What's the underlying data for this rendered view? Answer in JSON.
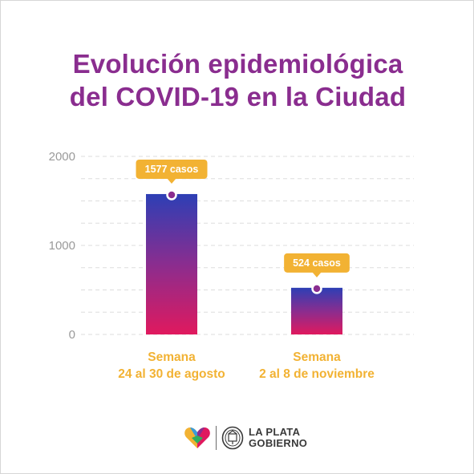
{
  "title_lines": [
    "Evolución epidemiológica",
    "del COVID-19 en la Ciudad"
  ],
  "colors": {
    "title": "#8a2d8f",
    "category_label": "#f2b233",
    "callout": "#f2b233",
    "bar_top": "#2d3fb5",
    "bar_mid": "#8a2d8f",
    "bar_bottom": "#e0195e",
    "marker": "#8a2d8f",
    "gridline": "#dddddd",
    "tick_label": "#9a9a9a"
  },
  "chart_data": {
    "type": "bar",
    "categories": [
      [
        "Semana",
        "24 al 30 de agosto"
      ],
      [
        "Semana",
        "2 al 8 de noviembre"
      ]
    ],
    "values": [
      1577,
      524
    ],
    "data_labels": [
      "1577 casos",
      "524 casos"
    ],
    "yticks": [
      0,
      1000,
      2000
    ],
    "ytick_labels": [
      "0",
      "1000",
      "2000"
    ],
    "ylim": [
      0,
      2000
    ],
    "grid": true,
    "legend": "none"
  },
  "footer": {
    "logo_icon": "heart-logo-icon",
    "seal_icon": "city-seal-icon",
    "brand_line1": "LA PLATA",
    "brand_line2": "GOBIERNO"
  }
}
